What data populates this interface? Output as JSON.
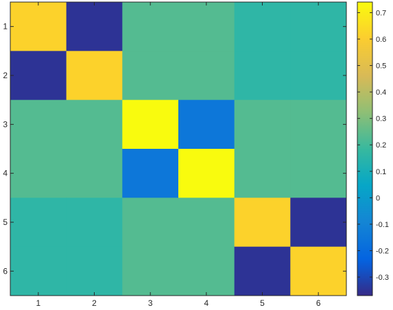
{
  "chart_data": {
    "type": "heatmap",
    "title": "",
    "xlabel": "",
    "ylabel": "",
    "x_categories": [
      "1",
      "2",
      "3",
      "4",
      "5",
      "6"
    ],
    "y_categories": [
      "1",
      "2",
      "3",
      "4",
      "5",
      "6"
    ],
    "values": [
      [
        0.62,
        -0.35,
        0.23,
        0.23,
        0.16,
        0.16
      ],
      [
        -0.35,
        0.62,
        0.23,
        0.23,
        0.16,
        0.16
      ],
      [
        0.23,
        0.23,
        0.74,
        -0.15,
        0.23,
        0.23
      ],
      [
        0.23,
        0.23,
        -0.15,
        0.74,
        0.23,
        0.23
      ],
      [
        0.16,
        0.16,
        0.23,
        0.23,
        0.62,
        -0.35
      ],
      [
        0.16,
        0.16,
        0.23,
        0.23,
        -0.35,
        0.62
      ]
    ],
    "colorbar": {
      "range": [
        -0.37,
        0.74
      ],
      "ticks": [
        -0.3,
        -0.2,
        -0.1,
        0,
        0.1,
        0.2,
        0.3,
        0.4,
        0.5,
        0.6,
        0.7
      ],
      "tick_labels": [
        "-0.3",
        "-0.2",
        "-0.1",
        "0",
        "0.1",
        "0.2",
        "0.3",
        "0.4",
        "0.5",
        "0.6",
        "0.7"
      ],
      "colormap": "parula",
      "placement": "right"
    },
    "grid": false
  }
}
